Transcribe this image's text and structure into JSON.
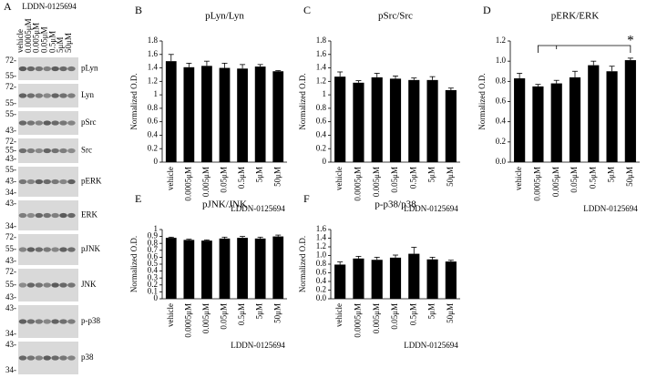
{
  "blot": {
    "panel_label": "A",
    "compound": "LDDN-0125694",
    "lanes": [
      "vehicle",
      "0.0005μM",
      "0.005μM",
      "0.05μM",
      "0.5μM",
      "5μM",
      "50μM"
    ],
    "rows": [
      {
        "label": "pLyn",
        "markers": [
          "72-",
          "55-"
        ]
      },
      {
        "label": "Lyn",
        "markers": [
          "72-",
          "55-"
        ]
      },
      {
        "label": "pSrc",
        "markers": [
          "55-",
          "43-"
        ]
      },
      {
        "label": "Src",
        "markers": [
          "72-",
          "55-",
          "43-"
        ]
      },
      {
        "label": "pERK",
        "markers": [
          "55-",
          "43-",
          "34-"
        ]
      },
      {
        "label": "ERK",
        "markers": [
          "43-",
          "34-"
        ]
      },
      {
        "label": "pJNK",
        "markers": [
          "72-",
          "55-",
          "43-"
        ]
      },
      {
        "label": "JNK",
        "markers": [
          "72-",
          "55-",
          "43-"
        ]
      },
      {
        "label": "p-p38",
        "markers": [
          "43-",
          "34-"
        ]
      },
      {
        "label": "p38",
        "markers": [
          "43-",
          "34-"
        ]
      }
    ]
  },
  "chart_data": [
    {
      "type": "bar",
      "panel_label": "B",
      "title": "pLyn/Lyn",
      "x_label": "LDDN-0125694",
      "y_label": "Normalized O.D.",
      "categories": [
        "vehicle",
        "0.0005μM",
        "0.005μM",
        "0.05μM",
        "0.5μM",
        "5μM",
        "50μM"
      ],
      "values": [
        1.5,
        1.41,
        1.43,
        1.4,
        1.39,
        1.42,
        1.35
      ],
      "errors": [
        0.1,
        0.06,
        0.07,
        0.07,
        0.06,
        0.03,
        0.01
      ],
      "color": "#000000",
      "ylim": [
        0,
        1.8
      ],
      "yticks": [
        0,
        0.2,
        0.4,
        0.6,
        0.8,
        1,
        1.2,
        1.4,
        1.6,
        1.8
      ]
    },
    {
      "type": "bar",
      "panel_label": "C",
      "title": "pSrc/Src",
      "x_label": "LDDN-0125694",
      "y_label": "Normalized O.D.",
      "categories": [
        "vehicle",
        "0.0005μM",
        "0.005μM",
        "0.05μM",
        "0.5μM",
        "5μM",
        "50μM"
      ],
      "values": [
        1.27,
        1.18,
        1.26,
        1.24,
        1.22,
        1.22,
        1.07
      ],
      "errors": [
        0.07,
        0.03,
        0.06,
        0.04,
        0.03,
        0.05,
        0.03
      ],
      "color": "#000000",
      "ylim": [
        0,
        1.8
      ],
      "yticks": [
        0,
        0.2,
        0.4,
        0.6,
        0.8,
        1,
        1.2,
        1.4,
        1.6,
        1.8
      ]
    },
    {
      "type": "bar",
      "panel_label": "D",
      "title": "pERK/ERK",
      "x_label": "LDDN-0125694",
      "y_label": "Normalized O.D.",
      "categories": [
        "vehicle",
        "0.0005μM",
        "0.005μM",
        "0.05μM",
        "0.5μM",
        "5μM",
        "50μM"
      ],
      "values": [
        0.83,
        0.75,
        0.78,
        0.84,
        0.96,
        0.9,
        1.01
      ],
      "errors": [
        0.05,
        0.02,
        0.03,
        0.06,
        0.04,
        0.05,
        0.02
      ],
      "color": "#000000",
      "ylim": [
        0,
        1.2
      ],
      "yticks": [
        {
          "value": 0,
          "label": "0.0"
        },
        0.2,
        0.4,
        0.6,
        0.8,
        {
          "value": 1,
          "label": "1.0"
        },
        1.2
      ],
      "annotation": "*"
    },
    {
      "type": "bar",
      "panel_label": "E",
      "title": "pJNK/JNK",
      "x_label": "LDDN-0125694",
      "y_label": "Normalized O.D.",
      "categories": [
        "vehicle",
        "0.0005μM",
        "0.005μM",
        "0.05μM",
        "0.5μM",
        "5μM",
        "50μM"
      ],
      "values": [
        0.88,
        0.85,
        0.84,
        0.87,
        0.88,
        0.87,
        0.9
      ],
      "errors": [
        0.01,
        0.01,
        0.01,
        0.02,
        0.02,
        0.02,
        0.02
      ],
      "color": "#000000",
      "ylim": [
        0,
        1
      ],
      "yticks": [
        0,
        0.1,
        0.2,
        0.3,
        0.4,
        0.5,
        0.6,
        0.7,
        0.8,
        0.9,
        1
      ]
    },
    {
      "type": "bar",
      "panel_label": "F",
      "title": "p-p38/p38",
      "x_label": "LDDN-0125694",
      "y_label": "Normalized O.D.",
      "categories": [
        "vehicle",
        "0.0005μM",
        "0.005μM",
        "0.05μM",
        "0.5μM",
        "5μM",
        "50μM"
      ],
      "values": [
        0.79,
        0.93,
        0.9,
        0.95,
        1.04,
        0.91,
        0.86
      ],
      "errors": [
        0.06,
        0.05,
        0.06,
        0.06,
        0.15,
        0.05,
        0.03
      ],
      "color": "#000000",
      "ylim": [
        0,
        1.6
      ],
      "yticks": [
        {
          "value": 0,
          "label": "0.0"
        },
        0.2,
        0.4,
        0.6,
        0.8,
        {
          "value": 1,
          "label": "1.0"
        },
        1.2,
        1.4,
        1.6
      ]
    }
  ]
}
